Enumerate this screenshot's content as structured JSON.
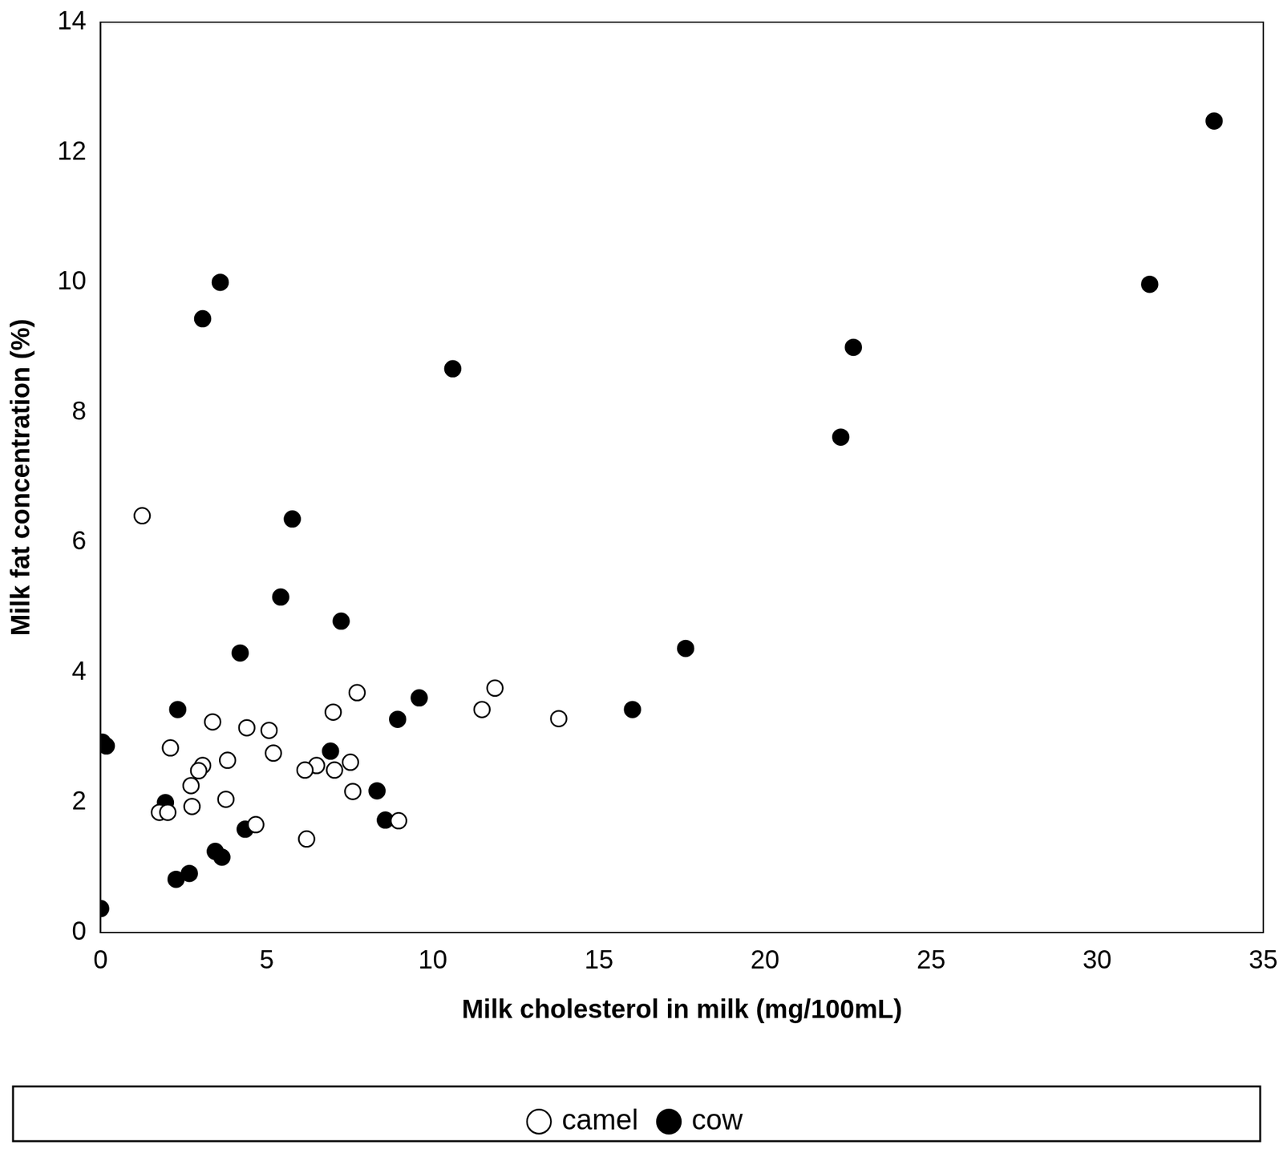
{
  "chart_data": {
    "type": "scatter",
    "x_label": "Milk cholesterol in milk (mg/100mL)",
    "y_label": "Milk fat concentration (%)",
    "xlim": [
      0,
      35
    ],
    "xticks": [
      0,
      5,
      10,
      15,
      20,
      25,
      30,
      35
    ],
    "ylim": [
      0,
      14
    ],
    "yticks": [
      0,
      2,
      4,
      6,
      8,
      10,
      12,
      14
    ],
    "grid": false,
    "legend": "bottom",
    "series": [
      {
        "name": "camel",
        "color": "#000000",
        "marker": "circle-open",
        "x": [
          1.25,
          3.37,
          4.4,
          5.07,
          7.72,
          7.0,
          11.87,
          11.48,
          13.79,
          2.1,
          5.2,
          3.82,
          3.07,
          2.95,
          6.5,
          6.15,
          7.04,
          7.52,
          2.72,
          7.59,
          3.77,
          2.75,
          1.77,
          2.02,
          4.67,
          8.97,
          6.2
        ],
        "values": [
          6.41,
          3.24,
          3.15,
          3.11,
          3.69,
          3.39,
          3.76,
          3.43,
          3.29,
          2.84,
          2.76,
          2.65,
          2.57,
          2.49,
          2.57,
          2.5,
          2.5,
          2.62,
          2.26,
          2.17,
          2.05,
          1.94,
          1.85,
          1.85,
          1.66,
          1.72,
          1.44
        ]
      },
      {
        "name": "cow",
        "color": "#000000",
        "marker": "circle",
        "x": [
          3.6,
          3.07,
          10.6,
          22.66,
          22.28,
          31.58,
          33.52,
          5.77,
          5.42,
          7.24,
          4.2,
          17.61,
          16.01,
          9.59,
          8.94,
          2.32,
          0.05,
          0.17,
          6.92,
          1.95,
          8.32,
          8.57,
          4.35,
          3.45,
          3.65,
          2.67,
          2.27,
          0.0
        ],
        "values": [
          10.0,
          9.44,
          8.67,
          9.0,
          7.62,
          9.97,
          12.48,
          6.36,
          5.16,
          4.79,
          4.3,
          4.37,
          3.43,
          3.61,
          3.28,
          3.43,
          2.93,
          2.87,
          2.79,
          2.0,
          2.18,
          1.73,
          1.59,
          1.25,
          1.16,
          0.91,
          0.82,
          0.37
        ]
      }
    ]
  }
}
